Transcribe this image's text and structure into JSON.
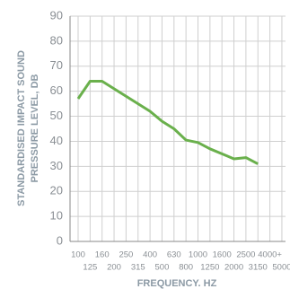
{
  "chart_data": {
    "type": "line",
    "y_label_lines": [
      "STANDARDISED IMPACT SOUND",
      "PRESSURE LEVEL, DB"
    ],
    "x_label": "FREQUENCY. HZ",
    "categories": [
      "100",
      "125",
      "160",
      "200",
      "250",
      "315",
      "400",
      "500",
      "630",
      "800",
      "1000",
      "1250",
      "1600",
      "2000",
      "2500",
      "3150",
      "4000+",
      "5000"
    ],
    "series": [
      {
        "color": "#6ab04c",
        "values": [
          57,
          64,
          64,
          61,
          58,
          55,
          52,
          48,
          45,
          40.5,
          39.5,
          37,
          35,
          33,
          33.5,
          31,
          null,
          null
        ]
      }
    ],
    "ylim": [
      0,
      90
    ],
    "yticks": [
      0,
      10,
      20,
      30,
      40,
      50,
      60,
      70,
      80,
      90
    ],
    "grid": true
  }
}
